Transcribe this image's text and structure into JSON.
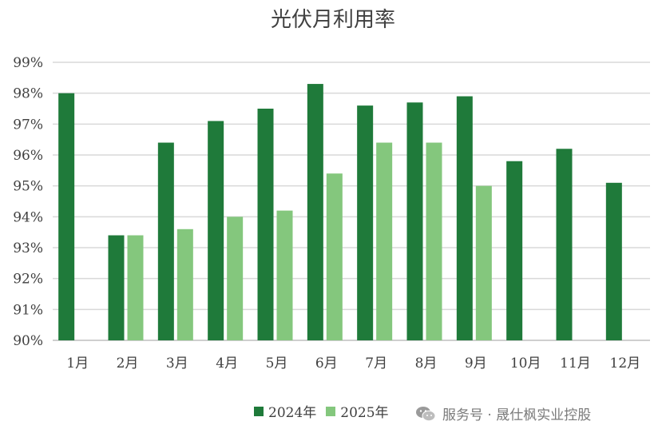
{
  "chart_data": {
    "type": "bar",
    "title": "光伏月利用率",
    "categories": [
      "1月",
      "2月",
      "3月",
      "4月",
      "5月",
      "6月",
      "7月",
      "8月",
      "9月",
      "10月",
      "11月",
      "12月"
    ],
    "series": [
      {
        "name": "2024年",
        "color": "#1f7a3a",
        "values": [
          98.0,
          93.4,
          96.4,
          97.1,
          97.5,
          98.3,
          97.6,
          97.7,
          97.9,
          95.8,
          96.2,
          95.1
        ]
      },
      {
        "name": "2025年",
        "color": "#84c77d",
        "values": [
          null,
          93.4,
          93.6,
          94.0,
          94.2,
          95.4,
          96.4,
          96.4,
          95.0,
          null,
          null,
          null
        ]
      }
    ],
    "y_ticks": [
      "90%",
      "91%",
      "92%",
      "93%",
      "94%",
      "95%",
      "96%",
      "97%",
      "98%",
      "99%"
    ],
    "ylim": [
      90,
      99
    ],
    "grid": true,
    "legend_position": "bottom-center"
  },
  "watermark": {
    "text": "服务号 · 晟仕枫实业控股",
    "icon": "wechat-icon"
  }
}
